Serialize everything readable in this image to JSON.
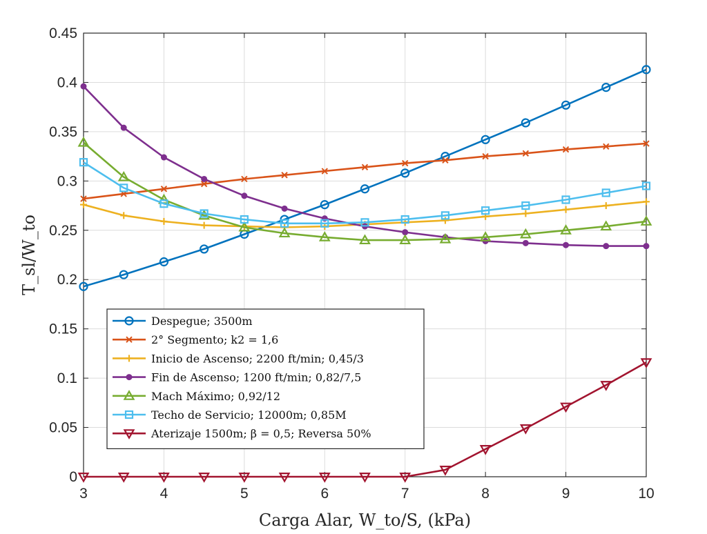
{
  "chart_data": {
    "type": "line",
    "xlabel": "Carga Alar, W_to/S, (kPa)",
    "ylabel": "T_sl/W_to",
    "xlim": [
      3,
      10
    ],
    "ylim": [
      0,
      0.45
    ],
    "xticks": [
      3,
      4,
      5,
      6,
      7,
      8,
      9,
      10
    ],
    "yticks": [
      0,
      0.05,
      0.1,
      0.15,
      0.2,
      0.25,
      0.3,
      0.35,
      0.4,
      0.45
    ],
    "ytick_labels": [
      "0",
      "0.05",
      "0.1",
      "0.15",
      "0.2",
      "0.25",
      "0.3",
      "0.35",
      "0.4",
      "0.45"
    ],
    "grid": true,
    "legend_position": "lower-left",
    "x": [
      3,
      3.5,
      4,
      4.5,
      5,
      5.5,
      6,
      6.5,
      7,
      7.5,
      8,
      8.5,
      9,
      9.5,
      10
    ],
    "series": [
      {
        "name": "Despegue; 3500m",
        "color": "#0072BD",
        "marker": "circle",
        "values": [
          0.193,
          0.205,
          0.218,
          0.231,
          0.246,
          0.261,
          0.276,
          0.292,
          0.308,
          0.325,
          0.342,
          0.359,
          0.377,
          0.395,
          0.413
        ]
      },
      {
        "name": "2° Segmento; k2 = 1,6",
        "color": "#D95319",
        "marker": "x",
        "values": [
          0.282,
          0.287,
          0.292,
          0.297,
          0.302,
          0.306,
          0.31,
          0.314,
          0.318,
          0.321,
          0.325,
          0.328,
          0.332,
          0.335,
          0.338
        ]
      },
      {
        "name": "Inicio de Ascenso; 2200 ft/min; 0,45/3",
        "color": "#EDB120",
        "marker": "plus",
        "values": [
          0.276,
          0.265,
          0.259,
          0.255,
          0.254,
          0.253,
          0.254,
          0.256,
          0.258,
          0.26,
          0.264,
          0.267,
          0.271,
          0.275,
          0.279
        ]
      },
      {
        "name": "Fin de Ascenso; 1200 ft/min; 0,82/7,5",
        "color": "#7E2F8E",
        "marker": "dot",
        "values": [
          0.396,
          0.354,
          0.324,
          0.302,
          0.285,
          0.272,
          0.262,
          0.254,
          0.248,
          0.243,
          0.239,
          0.237,
          0.235,
          0.234,
          0.234
        ]
      },
      {
        "name": "Mach Máximo; 0,92/12",
        "color": "#77AC30",
        "marker": "triangle-up",
        "values": [
          0.339,
          0.304,
          0.281,
          0.265,
          0.253,
          0.247,
          0.243,
          0.24,
          0.24,
          0.241,
          0.243,
          0.246,
          0.25,
          0.254,
          0.259
        ]
      },
      {
        "name": "Techo de Servicio; 12000m; 0,85M",
        "color": "#4DBEEE",
        "marker": "square",
        "values": [
          0.319,
          0.293,
          0.277,
          0.267,
          0.261,
          0.257,
          0.257,
          0.258,
          0.261,
          0.265,
          0.27,
          0.275,
          0.281,
          0.288,
          0.295
        ]
      },
      {
        "name": "Aterizaje 1500m; β = 0,5; Reversa 50%",
        "color": "#A2142F",
        "marker": "triangle-down",
        "values": [
          0.0,
          0.0,
          0.0,
          0.0,
          0.0,
          0.0,
          0.0,
          0.0,
          0.0,
          0.007,
          0.028,
          0.049,
          0.071,
          0.093,
          0.116
        ]
      }
    ]
  }
}
